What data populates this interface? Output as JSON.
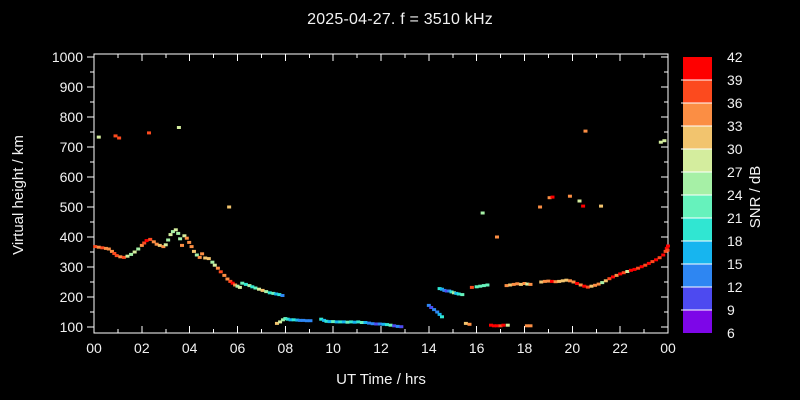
{
  "colors": {
    "background": "#000000",
    "frame": "#ffffff",
    "text": "#f2f2f2"
  },
  "chart_data": {
    "type": "scatter",
    "title": "2025-04-27. f = 3510 kHz",
    "xlabel": "UT Time / hrs",
    "ylabel": "Virtual height / km",
    "xlim": [
      0,
      24
    ],
    "ylim": [
      80,
      1010
    ],
    "grid": false,
    "x_ticks": [
      0,
      2,
      4,
      6,
      8,
      10,
      12,
      14,
      16,
      18,
      20,
      22,
      24
    ],
    "x_ticklabels": [
      "00",
      "02",
      "04",
      "06",
      "08",
      "10",
      "12",
      "14",
      "16",
      "18",
      "20",
      "22",
      "00"
    ],
    "y_ticks": [
      100,
      200,
      300,
      400,
      500,
      600,
      700,
      800,
      900,
      1000
    ],
    "y_ticklabels": [
      "100",
      "200",
      "300",
      "400",
      "500",
      "600",
      "700",
      "800",
      "900",
      "1000"
    ],
    "colorbar": {
      "label": "SNR / dB",
      "min": 6,
      "max": 42,
      "step": 3,
      "ticklabels": [
        "6",
        "9",
        "12",
        "15",
        "18",
        "21",
        "24",
        "27",
        "30",
        "33",
        "36",
        "39",
        "42"
      ],
      "colors": [
        "#7d06e8",
        "#4d4af0",
        "#2e86f2",
        "#17b5ef",
        "#30e6d2",
        "#66f2bc",
        "#a6f0a6",
        "#d4ed9e",
        "#f2c46e",
        "#fb8e44",
        "#fc4a1e",
        "#fe0000"
      ]
    },
    "points": [
      [
        0.05,
        368,
        37
      ],
      [
        0.2,
        366,
        34
      ],
      [
        0.35,
        364,
        37
      ],
      [
        0.5,
        362,
        34
      ],
      [
        0.62,
        360,
        34
      ],
      [
        0.75,
        352,
        34
      ],
      [
        0.85,
        345,
        37
      ],
      [
        0.95,
        338,
        37
      ],
      [
        1.1,
        334,
        34
      ],
      [
        1.25,
        332,
        37
      ],
      [
        1.4,
        336,
        28
      ],
      [
        1.55,
        342,
        25
      ],
      [
        1.7,
        350,
        28
      ],
      [
        1.85,
        360,
        25
      ],
      [
        2.0,
        372,
        34
      ],
      [
        2.1,
        380,
        37
      ],
      [
        2.2,
        388,
        40
      ],
      [
        2.35,
        392,
        37
      ],
      [
        2.5,
        384,
        34
      ],
      [
        2.62,
        376,
        34
      ],
      [
        2.75,
        372,
        31
      ],
      [
        2.9,
        368,
        34
      ],
      [
        3.0,
        374,
        28
      ],
      [
        3.1,
        390,
        25
      ],
      [
        3.2,
        408,
        28
      ],
      [
        3.3,
        418,
        25
      ],
      [
        3.42,
        424,
        28
      ],
      [
        3.52,
        412,
        25
      ],
      [
        3.6,
        394,
        25
      ],
      [
        3.68,
        372,
        34
      ],
      [
        3.78,
        404,
        28
      ],
      [
        3.88,
        396,
        34
      ],
      [
        3.98,
        382,
        34
      ],
      [
        4.08,
        368,
        34
      ],
      [
        4.18,
        352,
        31
      ],
      [
        4.3,
        340,
        25
      ],
      [
        4.42,
        332,
        34
      ],
      [
        4.52,
        344,
        34
      ],
      [
        4.65,
        330,
        31
      ],
      [
        4.8,
        328,
        31
      ],
      [
        4.95,
        316,
        25
      ],
      [
        5.05,
        306,
        28
      ],
      [
        5.18,
        296,
        34
      ],
      [
        5.3,
        284,
        37
      ],
      [
        5.45,
        272,
        34
      ],
      [
        5.58,
        260,
        34
      ],
      [
        5.7,
        252,
        37
      ],
      [
        5.8,
        246,
        40
      ],
      [
        5.9,
        240,
        34
      ],
      [
        6.0,
        236,
        25
      ],
      [
        6.1,
        232,
        28
      ],
      [
        6.2,
        246,
        22
      ],
      [
        6.35,
        242,
        19
      ],
      [
        6.5,
        238,
        25
      ],
      [
        6.62,
        234,
        19
      ],
      [
        6.75,
        230,
        22
      ],
      [
        6.9,
        226,
        28
      ],
      [
        7.05,
        222,
        31
      ],
      [
        7.2,
        218,
        25
      ],
      [
        7.35,
        214,
        19
      ],
      [
        7.5,
        212,
        22
      ],
      [
        7.62,
        210,
        16
      ],
      [
        7.75,
        208,
        19
      ],
      [
        7.88,
        205,
        13
      ],
      [
        7.65,
        112,
        31
      ],
      [
        7.78,
        117,
        28
      ],
      [
        7.9,
        124,
        25
      ],
      [
        8.0,
        128,
        22
      ],
      [
        8.1,
        126,
        19
      ],
      [
        8.22,
        124,
        16
      ],
      [
        8.35,
        124,
        19
      ],
      [
        8.5,
        123,
        16
      ],
      [
        8.62,
        122,
        13
      ],
      [
        8.75,
        122,
        13
      ],
      [
        8.9,
        121,
        13
      ],
      [
        9.05,
        121,
        13
      ],
      [
        9.5,
        126,
        19
      ],
      [
        9.62,
        122,
        16
      ],
      [
        9.72,
        119,
        19
      ],
      [
        9.85,
        118,
        16
      ],
      [
        10.0,
        118,
        22
      ],
      [
        10.15,
        117,
        16
      ],
      [
        10.3,
        117,
        19
      ],
      [
        10.45,
        117,
        16
      ],
      [
        10.6,
        116,
        22
      ],
      [
        10.75,
        117,
        19
      ],
      [
        10.9,
        116,
        16
      ],
      [
        11.05,
        117,
        19
      ],
      [
        11.2,
        115,
        22
      ],
      [
        11.35,
        115,
        16
      ],
      [
        11.5,
        113,
        13
      ],
      [
        11.65,
        111,
        13
      ],
      [
        11.8,
        110,
        10
      ],
      [
        11.95,
        110,
        13
      ],
      [
        12.1,
        109,
        16
      ],
      [
        12.25,
        108,
        19
      ],
      [
        12.4,
        106,
        22
      ],
      [
        12.55,
        104,
        10
      ],
      [
        12.7,
        102,
        13
      ],
      [
        12.85,
        101,
        10
      ],
      [
        14.0,
        172,
        13
      ],
      [
        14.1,
        165,
        10
      ],
      [
        14.22,
        158,
        13
      ],
      [
        14.35,
        150,
        13
      ],
      [
        14.45,
        142,
        16
      ],
      [
        14.55,
        134,
        19
      ],
      [
        14.45,
        228,
        19
      ],
      [
        14.55,
        226,
        16
      ],
      [
        14.65,
        222,
        13
      ],
      [
        14.75,
        220,
        10
      ],
      [
        14.85,
        220,
        13
      ],
      [
        14.95,
        217,
        19
      ],
      [
        15.05,
        214,
        25
      ],
      [
        15.15,
        212,
        16
      ],
      [
        15.25,
        210,
        19
      ],
      [
        15.4,
        208,
        22
      ],
      [
        15.8,
        232,
        37
      ],
      [
        16.0,
        234,
        22
      ],
      [
        16.15,
        236,
        22
      ],
      [
        16.3,
        238,
        22
      ],
      [
        16.45,
        240,
        22
      ],
      [
        17.25,
        238,
        34
      ],
      [
        17.4,
        240,
        31
      ],
      [
        17.55,
        242,
        34
      ],
      [
        17.7,
        244,
        34
      ],
      [
        17.85,
        242,
        31
      ],
      [
        18.0,
        245,
        34
      ],
      [
        18.12,
        243,
        28
      ],
      [
        18.25,
        242,
        34
      ],
      [
        18.7,
        250,
        31
      ],
      [
        18.85,
        252,
        34
      ],
      [
        19.0,
        253,
        34
      ],
      [
        19.15,
        252,
        40
      ],
      [
        19.3,
        251,
        34
      ],
      [
        19.45,
        252,
        31
      ],
      [
        19.6,
        254,
        31
      ],
      [
        19.75,
        256,
        31
      ],
      [
        19.9,
        254,
        34
      ],
      [
        20.05,
        250,
        34
      ],
      [
        20.2,
        245,
        40
      ],
      [
        20.35,
        240,
        34
      ],
      [
        20.5,
        236,
        40
      ],
      [
        20.65,
        233,
        37
      ],
      [
        20.8,
        236,
        31
      ],
      [
        20.95,
        239,
        34
      ],
      [
        21.1,
        243,
        34
      ],
      [
        21.25,
        248,
        25
      ],
      [
        21.4,
        254,
        31
      ],
      [
        21.55,
        261,
        37
      ],
      [
        21.7,
        267,
        40
      ],
      [
        21.85,
        272,
        34
      ],
      [
        22.0,
        277,
        40
      ],
      [
        22.15,
        281,
        37
      ],
      [
        22.3,
        285,
        28
      ],
      [
        22.45,
        289,
        40
      ],
      [
        22.6,
        292,
        40
      ],
      [
        22.75,
        296,
        37
      ],
      [
        22.9,
        301,
        40
      ],
      [
        23.05,
        306,
        37
      ],
      [
        23.2,
        312,
        40
      ],
      [
        23.35,
        318,
        37
      ],
      [
        23.5,
        324,
        40
      ],
      [
        23.65,
        331,
        37
      ],
      [
        23.8,
        340,
        40
      ],
      [
        23.9,
        352,
        37
      ],
      [
        23.95,
        362,
        40
      ],
      [
        24.0,
        370,
        40
      ],
      [
        23.98,
        356,
        37
      ],
      [
        0.2,
        733,
        28
      ],
      [
        0.9,
        737,
        37
      ],
      [
        1.05,
        730,
        37
      ],
      [
        2.3,
        747,
        37
      ],
      [
        3.55,
        765,
        28
      ],
      [
        5.65,
        500,
        31
      ],
      [
        16.25,
        480,
        25
      ],
      [
        16.85,
        400,
        34
      ],
      [
        18.65,
        500,
        34
      ],
      [
        19.05,
        531,
        34
      ],
      [
        19.17,
        533,
        40
      ],
      [
        19.9,
        536,
        34
      ],
      [
        20.3,
        520,
        28
      ],
      [
        20.45,
        503,
        40
      ],
      [
        20.55,
        753,
        34
      ],
      [
        21.2,
        503,
        31
      ],
      [
        23.7,
        716,
        28
      ],
      [
        23.85,
        721,
        28
      ],
      [
        15.55,
        112,
        31
      ],
      [
        15.7,
        109,
        34
      ],
      [
        16.6,
        106,
        40
      ],
      [
        16.72,
        104,
        40
      ],
      [
        16.85,
        104,
        40
      ],
      [
        17.0,
        104,
        37
      ],
      [
        17.12,
        106,
        40
      ],
      [
        17.3,
        106,
        28
      ],
      [
        18.1,
        104,
        34
      ],
      [
        18.25,
        104,
        34
      ]
    ]
  }
}
